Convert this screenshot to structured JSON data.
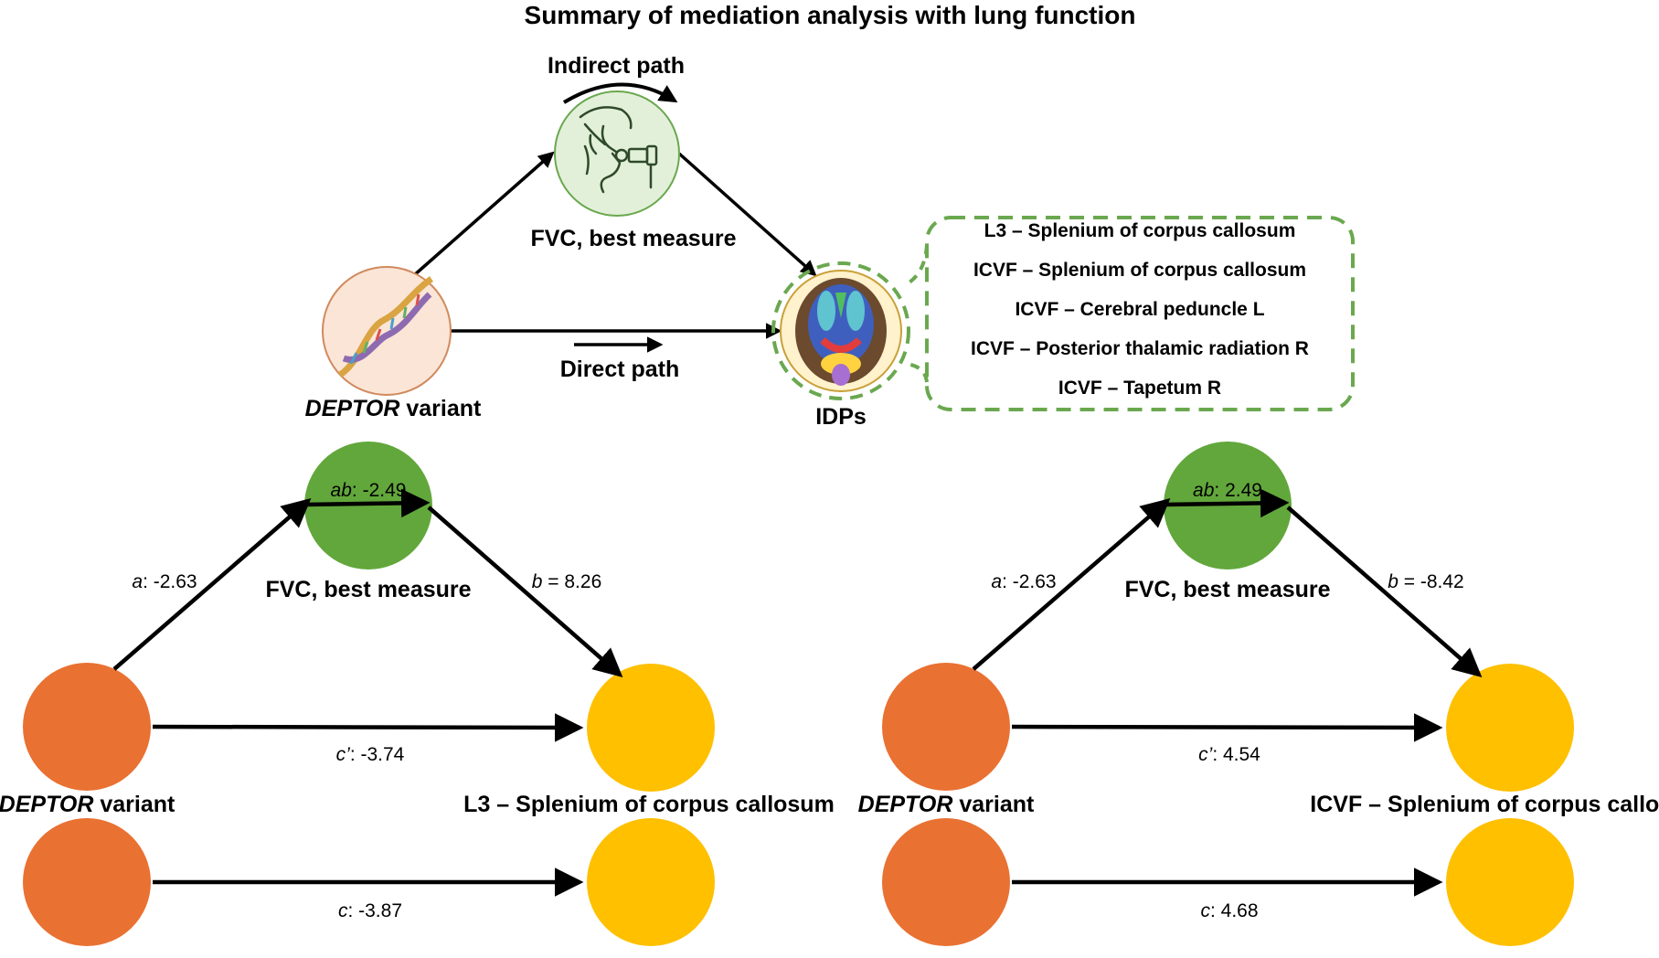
{
  "title": "Summary of mediation analysis with lung function",
  "top": {
    "indirect_path": "Indirect path",
    "direct_path": "Direct path",
    "mediator": "FVC, best measure",
    "exposure": {
      "italic": "DEPTOR",
      "rest": " variant"
    },
    "outcome": "IDPs",
    "idp_list": [
      "L3 – Splenium of corpus callosum",
      "ICVF – Splenium of corpus callosum",
      "ICVF – Cerebral peduncle L",
      "ICVF – Posterior thalamic radiation R",
      "ICVF – Tapetum R"
    ]
  },
  "panels": [
    {
      "mediator": "FVC, best measure",
      "exposure": {
        "italic": "DEPTOR",
        "rest": " variant"
      },
      "outcome": "L3 – Splenium of corpus callosum",
      "ab": {
        "sym": "ab",
        "text": ": -2.49"
      },
      "a": {
        "sym": "a",
        "text": ": -2.63"
      },
      "b": {
        "sym": "b",
        "text": " = 8.26"
      },
      "c_prime": {
        "sym": "c’",
        "text": ": -3.74"
      },
      "c": {
        "sym": "c",
        "text": ": -3.87"
      }
    },
    {
      "mediator": "FVC, best measure",
      "exposure": {
        "italic": "DEPTOR",
        "rest": " variant"
      },
      "outcome": "ICVF – Splenium of corpus callosum",
      "ab": {
        "sym": "ab",
        "text": ": 2.49"
      },
      "a": {
        "sym": "a",
        "text": ": -2.63"
      },
      "b": {
        "sym": "b",
        "text": " = -8.42"
      },
      "c_prime": {
        "sym": "c’",
        "text": ": 4.54"
      },
      "c": {
        "sym": "c",
        "text": ": 4.68"
      }
    }
  ],
  "colors": {
    "exposure_fill": "#e97132",
    "outcome_fill": "#ffc000",
    "mediator_fill": "#62a73b",
    "top_mediator_fill": "#e2f0d9",
    "top_mediator_stroke": "#6aa84f",
    "top_exposure_fill": "#fbe5d6",
    "top_exposure_stroke": "#d08a5e",
    "top_outcome_fill": "#fff2cc",
    "top_outcome_stroke": "#c9a13a",
    "dashed_green": "#6aa84f",
    "arrow": "#000000"
  }
}
